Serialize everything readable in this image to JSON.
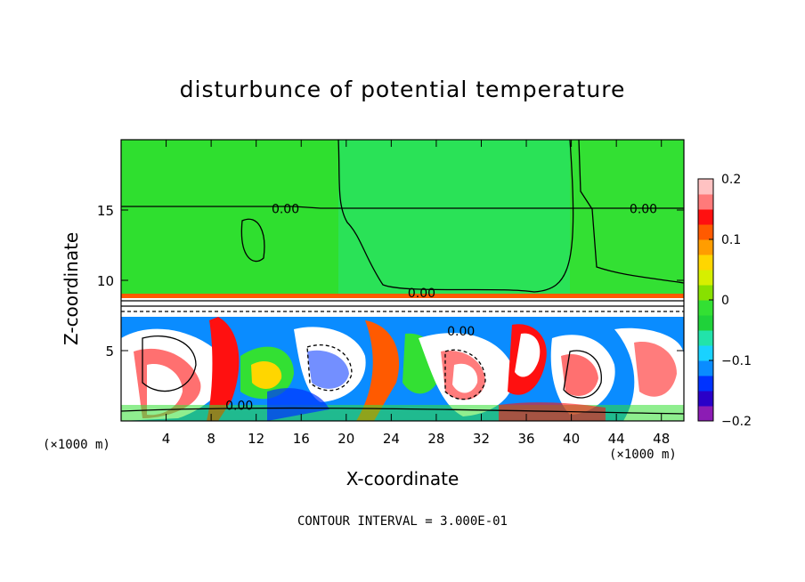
{
  "chart_data": {
    "type": "heatmap",
    "title": "disturbunce of potential temperature",
    "xlabel": "X-coordinate",
    "ylabel": "Z-coordinate",
    "x_unit": "(×1000 m)",
    "z_unit": "",
    "xlim": [
      0,
      50
    ],
    "ylim": [
      0,
      20
    ],
    "x_ticks": [
      4,
      8,
      12,
      16,
      20,
      24,
      28,
      32,
      36,
      40,
      44,
      48
    ],
    "y_ticks": [
      5,
      10,
      15
    ],
    "colorbar": {
      "min": -0.2,
      "max": 0.2,
      "ticks": [
        {
          "value": 0.2,
          "label": "0.2"
        },
        {
          "value": 0.1,
          "label": "0.1"
        },
        {
          "value": 0,
          "label": "0"
        },
        {
          "value": -0.1,
          "label": "−0.1"
        },
        {
          "value": -0.2,
          "label": "−0.2"
        }
      ],
      "colors": [
        "#8c1cb4",
        "#2a00c8",
        "#0033ff",
        "#0a8cff",
        "#19d2ff",
        "#22e3aa",
        "#1fd23a",
        "#33e033",
        "#88e000",
        "#d6ef00",
        "#ffd600",
        "#ff9d00",
        "#ff5a00",
        "#ff1010",
        "#ff7a7a",
        "#ffc2c2"
      ]
    },
    "contour_labels": [
      {
        "x": 14.6,
        "z": 15.1,
        "text": "0.00"
      },
      {
        "x": 46.4,
        "z": 15.1,
        "text": "0.00"
      },
      {
        "x": 26.7,
        "z": 9.1,
        "text": "0.00"
      },
      {
        "x": 30.2,
        "z": 6.4,
        "text": "0.00"
      },
      {
        "x": 10.5,
        "z": 1.1,
        "text": "0.00"
      }
    ],
    "contour_interval": "CONTOUR INTERVAL = 3.000E-01"
  }
}
